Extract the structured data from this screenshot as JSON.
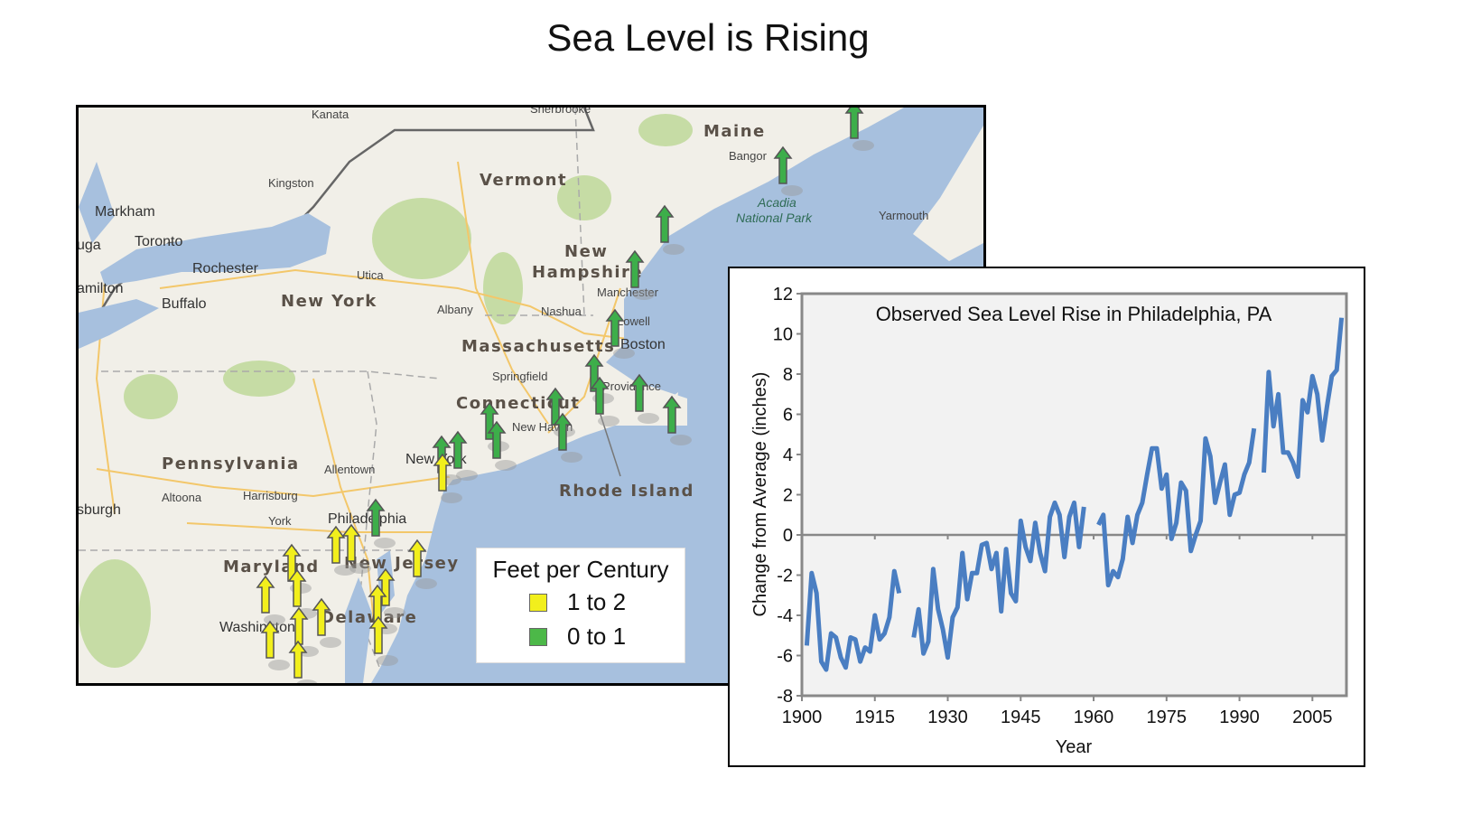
{
  "title": "Sea Level is Rising",
  "map": {
    "labels": {
      "kanata": "Kanata",
      "sherbrooke": "Sherbrooke",
      "maine": "Maine",
      "bangor": "Bangor",
      "acadia1": "Acadia",
      "acadia2": "National Park",
      "yarmouth": "Yarmouth",
      "kingston": "Kingston",
      "vermont": "Vermont",
      "markham": "Markham",
      "toronto": "Toronto",
      "mississauga": "uga",
      "hamilton": "amilton",
      "rochester": "Rochester",
      "utica": "Utica",
      "buffalo": "Buffalo",
      "new_york_state": "New York",
      "albany": "Albany",
      "new_hampshire1": "New",
      "new_hampshire2": "Hampshire",
      "manchester": "Manchester",
      "nashua": "Nashua",
      "lowell": "Lowell",
      "boston": "Boston",
      "massachusetts": "Massachusetts",
      "springfield": "Springfield",
      "providence": "Providence",
      "connecticut": "Connecticut",
      "new_haven": "New Haven",
      "rhode_island": "Rhode Island",
      "pennsylvania": "Pennsylvania",
      "allentown": "Allentown",
      "new_york_city": "New York",
      "pittsburgh": "sburgh",
      "altoona": "Altoona",
      "harrisburg": "Harrisburg",
      "york": "York",
      "philadelphia": "Philadelphia",
      "maryland": "Maryland",
      "new_jersey": "New Jersey",
      "washington": "Washington",
      "delaware": "Delaware"
    },
    "colors": {
      "land": "#f1efe8",
      "water": "#a7c0de",
      "forest": "#c6dca5",
      "road": "#f3c76a",
      "high": "#f2ef1c",
      "low": "#3dae4a"
    },
    "legend": {
      "title": "Feet per Century",
      "items": [
        {
          "label": "1 to 2",
          "color": "#f2ef1c"
        },
        {
          "label": "0 to 1",
          "color": "#4cb848"
        }
      ]
    },
    "markers": {
      "green": 16,
      "yellow": 14
    }
  },
  "chart_data": {
    "type": "line",
    "title": "Observed Sea Level Rise in Philadelphia, PA",
    "xlabel": "Year",
    "ylabel": "Change from Average (inches)",
    "xlim": [
      1900,
      2012
    ],
    "ylim": [
      -8,
      12
    ],
    "xticks": [
      1900,
      1915,
      1930,
      1945,
      1960,
      1975,
      1990,
      2005
    ],
    "yticks": [
      -8,
      -6,
      -4,
      -2,
      0,
      2,
      4,
      6,
      8,
      10,
      12
    ],
    "grid": false,
    "legend": "none",
    "color": "#4a7ec2",
    "x": [
      1901,
      1902,
      1903,
      1904,
      1905,
      1906,
      1907,
      1908,
      1909,
      1910,
      1911,
      1912,
      1913,
      1914,
      1915,
      1916,
      1917,
      1918,
      1919,
      1920,
      1921,
      1922,
      1923,
      1924,
      1925,
      1926,
      1927,
      1928,
      1929,
      1930,
      1931,
      1932,
      1933,
      1934,
      1935,
      1936,
      1937,
      1938,
      1939,
      1940,
      1941,
      1942,
      1943,
      1944,
      1945,
      1946,
      1947,
      1948,
      1949,
      1950,
      1951,
      1952,
      1953,
      1954,
      1955,
      1956,
      1957,
      1958,
      1959,
      1960,
      1961,
      1962,
      1963,
      1964,
      1965,
      1966,
      1967,
      1968,
      1969,
      1970,
      1971,
      1972,
      1973,
      1974,
      1975,
      1976,
      1977,
      1978,
      1979,
      1980,
      1981,
      1982,
      1983,
      1984,
      1985,
      1986,
      1987,
      1988,
      1989,
      1990,
      1991,
      1992,
      1993,
      1994,
      1995,
      1996,
      1997,
      1998,
      1999,
      2000,
      2001,
      2002,
      2003,
      2004,
      2005,
      2006,
      2007,
      2008,
      2009,
      2010,
      2011
    ],
    "y": [
      -5.5,
      -1.9,
      -2.9,
      -6.3,
      -6.7,
      -4.9,
      -5.1,
      -6.1,
      -6.6,
      -5.1,
      -5.2,
      -6.3,
      -5.6,
      -5.8,
      -4.0,
      -5.2,
      -4.9,
      -4.1,
      -1.8,
      -2.9,
      null,
      null,
      -5.1,
      -3.7,
      -5.9,
      -5.3,
      -1.7,
      -3.7,
      -4.7,
      -6.1,
      -4.1,
      -3.6,
      -0.9,
      -3.2,
      -1.9,
      -1.9,
      -0.5,
      -0.4,
      -1.7,
      -0.9,
      -3.8,
      -0.7,
      -2.9,
      -3.3,
      0.7,
      -0.6,
      -1.3,
      0.6,
      -0.9,
      -1.8,
      0.9,
      1.6,
      1.0,
      -1.1,
      0.9,
      1.6,
      -0.6,
      1.4,
      null,
      null,
      0.5,
      1.0,
      -2.5,
      -1.8,
      -2.1,
      -1.2,
      0.9,
      -0.4,
      1.0,
      1.6,
      3.0,
      4.3,
      4.3,
      2.3,
      3.0,
      -0.2,
      0.6,
      2.6,
      2.2,
      -0.8,
      0.0,
      0.7,
      4.8,
      3.9,
      1.6,
      2.6,
      3.5,
      1.0,
      2.0,
      2.1,
      3.0,
      3.6,
      5.3,
      null,
      3.1,
      8.1,
      5.4,
      7.0,
      4.1,
      4.1,
      3.6,
      2.9,
      6.7,
      6.1,
      7.9,
      7.0,
      4.7,
      6.4,
      7.9,
      8.2,
      10.8
    ]
  }
}
